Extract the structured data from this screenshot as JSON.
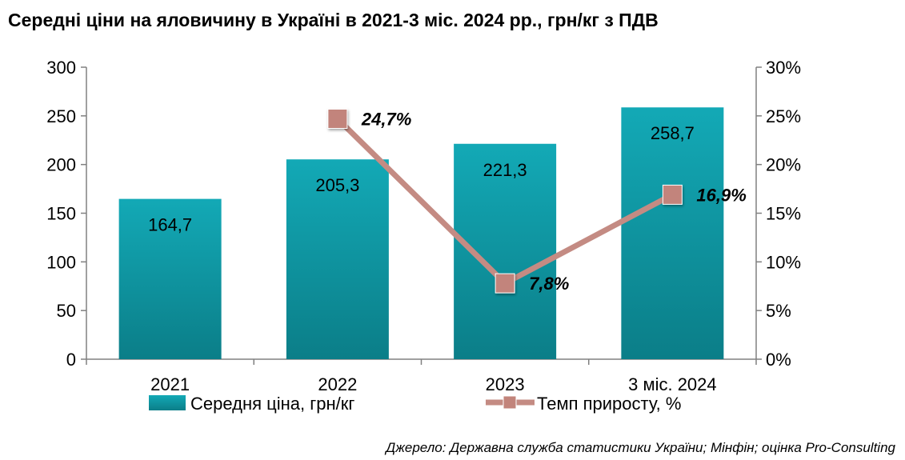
{
  "chart_data": {
    "type": "bar",
    "title": "Середні ціни на яловичину в Україні в 2021-3 міс. 2024 рр., грн/кг з ПДВ",
    "categories": [
      "2021",
      "2022",
      "2023",
      "3 міс. 2024"
    ],
    "series": [
      {
        "name": "Середня ціна, грн/кг",
        "type": "bar",
        "axis": "left",
        "values": [
          164.7,
          205.3,
          221.3,
          258.7
        ],
        "labels": [
          "164,7",
          "205,3",
          "221,3",
          "258,7"
        ],
        "color": "#0e9aa7"
      },
      {
        "name": "Темп приросту, %",
        "type": "line",
        "axis": "right",
        "values": [
          null,
          24.7,
          7.8,
          16.9
        ],
        "labels": [
          "",
          "24,7%",
          "7,8%",
          "16,9%"
        ],
        "color": "#c48b83"
      }
    ],
    "y_left": {
      "min": 0,
      "max": 300,
      "ticks": [
        0,
        50,
        100,
        150,
        200,
        250,
        300
      ],
      "tick_labels": [
        "0",
        "50",
        "100",
        "150",
        "200",
        "250",
        "300"
      ]
    },
    "y_right": {
      "min": 0,
      "max": 30,
      "ticks": [
        0,
        5,
        10,
        15,
        20,
        25,
        30
      ],
      "tick_labels": [
        "0%",
        "5%",
        "10%",
        "15%",
        "20%",
        "25%",
        "30%"
      ]
    },
    "grid": false,
    "legend": "bottom",
    "source": "Джерело: Державна служба статистики України; Мінфін; оцінка Pro-Consulting"
  }
}
